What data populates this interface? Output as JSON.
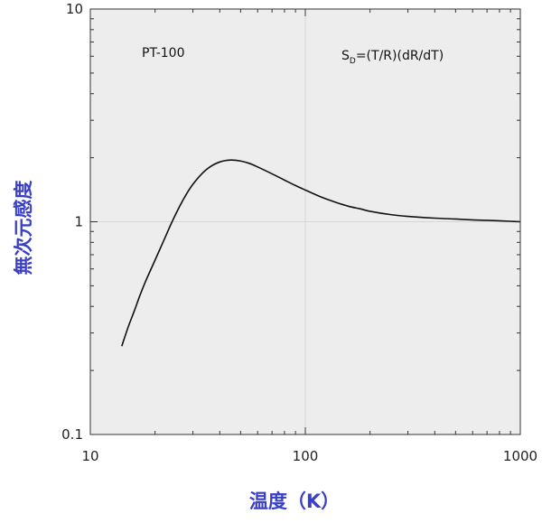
{
  "chart_data": {
    "type": "line",
    "title": "",
    "xlabel": "温度（K）",
    "ylabel": "無次元感度",
    "x_scale": "log",
    "y_scale": "log",
    "xlim": [
      10,
      1000
    ],
    "ylim": [
      0.1,
      10
    ],
    "x_ticks": [
      "10",
      "100",
      "1000"
    ],
    "y_ticks": [
      "0.1",
      "1",
      "10"
    ],
    "grid": true,
    "annotations": {
      "sensor": "PT-100",
      "formula_prefix": "S",
      "formula_subscript": "D",
      "formula_rest": "=(T/R)(dR/dT)"
    },
    "series": [
      {
        "x": [
          14,
          15,
          16,
          17,
          18,
          20,
          22,
          24,
          26,
          28,
          30,
          33,
          36,
          40,
          45,
          50,
          55,
          60,
          70,
          80,
          90,
          100,
          120,
          140,
          160,
          180,
          200,
          250,
          300,
          400,
          500,
          600,
          700,
          800,
          900,
          1000
        ],
        "y": [
          0.26,
          0.32,
          0.38,
          0.45,
          0.52,
          0.66,
          0.82,
          1.0,
          1.18,
          1.35,
          1.5,
          1.68,
          1.81,
          1.91,
          1.95,
          1.93,
          1.88,
          1.81,
          1.68,
          1.57,
          1.48,
          1.41,
          1.3,
          1.23,
          1.18,
          1.15,
          1.12,
          1.08,
          1.06,
          1.04,
          1.03,
          1.02,
          1.015,
          1.01,
          1.005,
          1.0
        ]
      }
    ]
  }
}
